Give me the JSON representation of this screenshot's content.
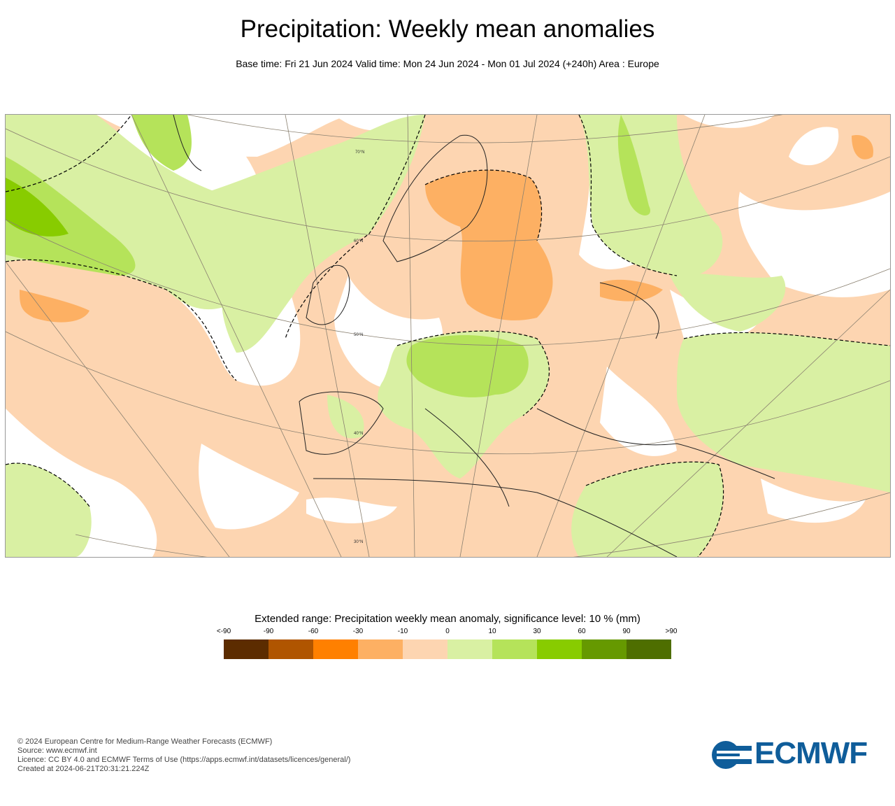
{
  "header": {
    "title": "Precipitation: Weekly mean anomalies",
    "subtitle": "Base time: Fri 21 Jun 2024 Valid time: Mon 24 Jun 2024 - Mon 01 Jul 2024 (+240h) Area : Europe"
  },
  "map": {
    "area": "Europe",
    "latitude_labels": [
      "70°N",
      "60°N",
      "50°N",
      "40°N",
      "30°N"
    ],
    "colors": {
      "background": "#fdd5b1",
      "white": "#ffffff",
      "light_green": "#d9f0a3",
      "green": "#b5e35a",
      "bright_green": "#88cc00",
      "orange": "#fdb063"
    }
  },
  "legend": {
    "title": "Extended range: Precipitation weekly mean anomaly, significance level: 10 % (mm)",
    "labels": [
      "<-90",
      "-90",
      "-60",
      "-30",
      "-10",
      "0",
      "10",
      "30",
      "60",
      "90",
      ">90"
    ],
    "colors": [
      "#5c2c00",
      "#b05500",
      "#ff8000",
      "#fdb063",
      "#fdd5b1",
      "#d9f0a3",
      "#b5e35a",
      "#88cc00",
      "#669900",
      "#4e6e00"
    ]
  },
  "footer": {
    "lines": [
      "© 2024 European Centre for Medium-Range Weather Forecasts (ECMWF)",
      "Source: www.ecmwf.int",
      "Licence: CC BY 4.0 and ECMWF Terms of Use (https://apps.ecmwf.int/datasets/licences/general/)",
      "Created at 2024-06-21T20:31:21.224Z"
    ],
    "logo_text": "ECMWF"
  }
}
